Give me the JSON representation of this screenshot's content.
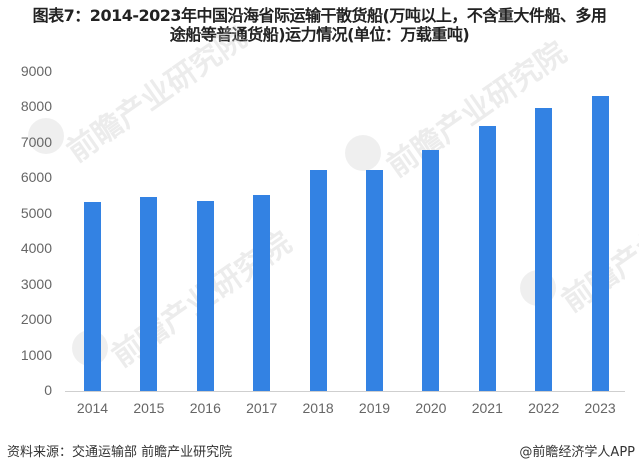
{
  "title_line1": "图表7：2014-2023年中国沿海省际运输干散货船(万吨以上，不含重大件船、多用",
  "title_line2": "途船等普通货船)运力情况(单位：万载重吨)",
  "footer": {
    "source": "资料来源：交通运输部 前瞻产业研究院",
    "credit": "@前瞻经济学人APP"
  },
  "watermark": "前瞻产业研究院",
  "colors": {
    "bar": "#3382e3",
    "axis_text": "#666666"
  },
  "y_ticks": [
    "9000",
    "8000",
    "7000",
    "6000",
    "5000",
    "4000",
    "3000",
    "2000",
    "1000",
    "0"
  ],
  "chart_data": {
    "type": "bar",
    "title": "图表7：2014-2023年中国沿海省际运输干散货船(万吨以上，不含重大件船、多用途船等普通货船)运力情况(单位：万载重吨)",
    "xlabel": "",
    "ylabel": "万载重吨",
    "ylim": [
      0,
      9000
    ],
    "yticks": [
      0,
      1000,
      2000,
      3000,
      4000,
      5000,
      6000,
      7000,
      8000,
      9000
    ],
    "grid": false,
    "legend": "none",
    "categories": [
      "2014",
      "2015",
      "2016",
      "2017",
      "2018",
      "2019",
      "2020",
      "2021",
      "2022",
      "2023"
    ],
    "values": [
      5330,
      5470,
      5360,
      5530,
      6240,
      6240,
      6800,
      7480,
      7990,
      8320
    ]
  }
}
